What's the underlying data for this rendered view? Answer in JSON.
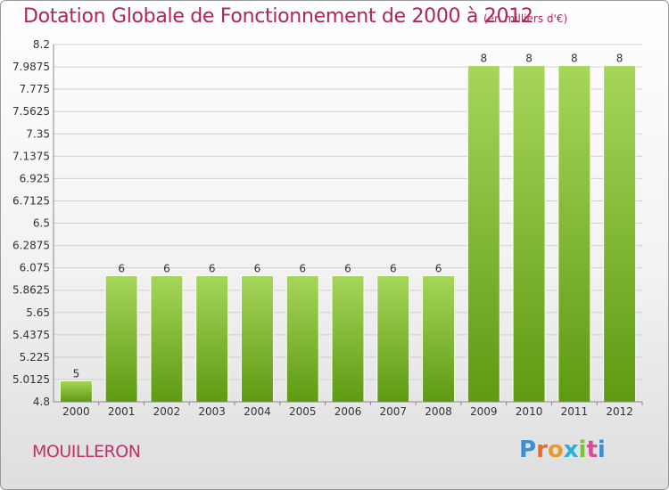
{
  "title": "Dotation Globale de Fonctionnement de 2000 à 2012",
  "subtitle": "(en milliers d'€)",
  "commune": "MOUILLERON",
  "logo": {
    "letters": [
      "P",
      "r",
      "o",
      "x",
      "i",
      "t",
      "i"
    ],
    "colors": [
      "#3a8fd8",
      "#e86a2a",
      "#e89a2a",
      "#2ab0d8",
      "#7ac23a",
      "#d84a9a",
      "#3a8fd8"
    ]
  },
  "colors": {
    "bar_top": "#a6d65a",
    "bar_bottom": "#5e9a12",
    "grid": "#cfcfcf",
    "axis": "#888888",
    "title": "#b0245e"
  },
  "chart_data": {
    "type": "bar",
    "title": "Dotation Globale de Fonctionnement de 2000 à 2012",
    "subtitle": "(en milliers d'€)",
    "categories": [
      "2000",
      "2001",
      "2002",
      "2003",
      "2004",
      "2005",
      "2006",
      "2007",
      "2008",
      "2009",
      "2010",
      "2011",
      "2012"
    ],
    "values": [
      5,
      6,
      6,
      6,
      6,
      6,
      6,
      6,
      6,
      8,
      8,
      8,
      8
    ],
    "value_labels": [
      "5",
      "6",
      "6",
      "6",
      "6",
      "6",
      "6",
      "6",
      "6",
      "8",
      "8",
      "8",
      "8"
    ],
    "yticks": [
      "4.8",
      "5.0125",
      "5.225",
      "5.4375",
      "5.65",
      "5.8625",
      "6.075",
      "6.2875",
      "6.5",
      "6.7125",
      "6.925",
      "7.1375",
      "7.35",
      "7.5625",
      "7.775",
      "7.9875",
      "8.2"
    ],
    "ylim": [
      4.8,
      8.2
    ],
    "grid": true,
    "legend": "none"
  }
}
